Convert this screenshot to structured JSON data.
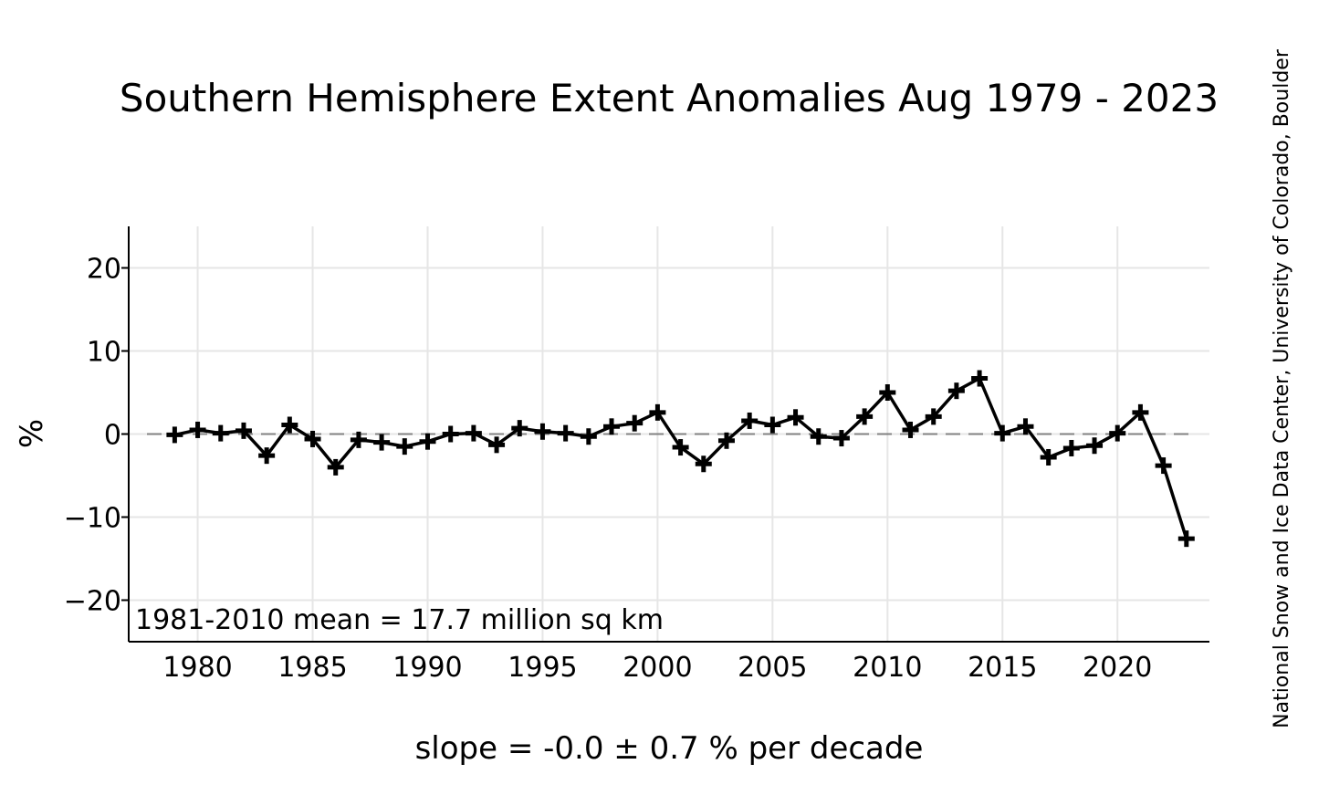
{
  "chart_data": {
    "type": "line",
    "title": "Southern Hemisphere Extent Anomalies Aug 1979 - 2023",
    "xlabel": "slope = -0.0 ± 0.7 % per decade",
    "ylabel": "%",
    "annotation": "1981-2010 mean = 17.7 million sq km",
    "credit": "National Snow and Ice Data Center, University of Colorado, Boulder",
    "xlim": [
      1977,
      2024
    ],
    "ylim": [
      -25,
      25
    ],
    "x_ticks": [
      {
        "value": 1980,
        "label": "1980"
      },
      {
        "value": 1985,
        "label": "1985"
      },
      {
        "value": 1990,
        "label": "1990"
      },
      {
        "value": 1995,
        "label": "1995"
      },
      {
        "value": 2000,
        "label": "2000"
      },
      {
        "value": 2005,
        "label": "2005"
      },
      {
        "value": 2010,
        "label": "2010"
      },
      {
        "value": 2015,
        "label": "2015"
      },
      {
        "value": 2020,
        "label": "2020"
      }
    ],
    "y_ticks": [
      {
        "value": 20,
        "label": "20"
      },
      {
        "value": 10,
        "label": "10"
      },
      {
        "value": 0,
        "label": "0"
      },
      {
        "value": -10,
        "label": "−10"
      },
      {
        "value": -20,
        "label": "−20"
      }
    ],
    "grid": true,
    "reference_line": {
      "y": 0,
      "style": "dashed",
      "color": "#808080"
    },
    "line_color": "#000000",
    "marker": "plus",
    "x": [
      1979,
      1980,
      1981,
      1982,
      1983,
      1984,
      1985,
      1986,
      1987,
      1988,
      1989,
      1990,
      1991,
      1992,
      1993,
      1994,
      1995,
      1996,
      1997,
      1998,
      1999,
      2000,
      2001,
      2002,
      2003,
      2004,
      2005,
      2006,
      2007,
      2008,
      2009,
      2010,
      2011,
      2012,
      2013,
      2014,
      2015,
      2016,
      2017,
      2018,
      2019,
      2020,
      2021,
      2022,
      2023
    ],
    "y": [
      -0.1,
      0.5,
      0.1,
      0.4,
      -2.6,
      1.1,
      -0.6,
      -4.0,
      -0.7,
      -1.0,
      -1.5,
      -0.9,
      0.0,
      0.1,
      -1.3,
      0.7,
      0.3,
      0.1,
      -0.3,
      0.9,
      1.3,
      2.6,
      -1.6,
      -3.6,
      -0.8,
      1.6,
      1.1,
      2.0,
      -0.3,
      -0.5,
      2.1,
      5.0,
      0.5,
      2.1,
      5.2,
      6.7,
      0.1,
      0.9,
      -2.8,
      -1.7,
      -1.4,
      0.1,
      2.6,
      -3.8,
      -12.6
    ]
  }
}
